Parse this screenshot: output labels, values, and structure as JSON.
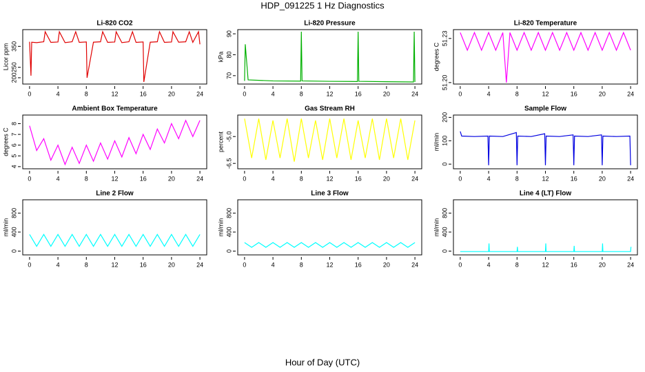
{
  "title": "HDP_091225  1 Hz Diagnostics",
  "xlabel": "Hour of Day (UTC)",
  "chart_data": [
    {
      "type": "line",
      "title": "Li-820 CO2",
      "ylabel": "Licor ppm",
      "color": "#e00000",
      "xlim": [
        -0.96,
        24.96
      ],
      "xticks": [
        0,
        4,
        8,
        12,
        16,
        20,
        24
      ],
      "ylim": [
        170,
        430
      ],
      "yticks": [
        200,
        250,
        350
      ],
      "x": [
        0,
        0.2,
        0.3,
        1,
        2,
        2.2,
        3,
        4,
        4.2,
        5,
        6,
        6.5,
        7,
        8,
        8.1,
        9,
        10,
        10.3,
        11,
        12,
        12.2,
        13,
        14,
        14.5,
        15,
        16,
        16.1,
        17,
        18,
        18.3,
        19,
        20,
        20.2,
        21,
        22,
        22.5,
        23,
        23.8,
        24
      ],
      "values": [
        372,
        210,
        370,
        368,
        372,
        420,
        369,
        371,
        420,
        368,
        372,
        420,
        369,
        371,
        200,
        370,
        372,
        420,
        369,
        371,
        420,
        368,
        372,
        420,
        369,
        371,
        180,
        370,
        372,
        420,
        369,
        371,
        420,
        370,
        372,
        420,
        369,
        420,
        360
      ]
    },
    {
      "type": "line",
      "title": "Li-820 Pressure",
      "ylabel": "kPa",
      "color": "#00b000",
      "xlim": [
        -0.96,
        24.96
      ],
      "xticks": [
        0,
        4,
        8,
        12,
        16,
        20,
        24
      ],
      "ylim": [
        66,
        92
      ],
      "yticks": [
        70,
        80,
        90
      ],
      "x": [
        0,
        0.1,
        0.5,
        4,
        7.9,
        8,
        8.1,
        12,
        15.9,
        16,
        16.1,
        20,
        23.8,
        23.9,
        24
      ],
      "values": [
        67.5,
        85,
        68,
        67.5,
        67.4,
        91,
        67.5,
        67.3,
        67.2,
        91,
        67.3,
        67.1,
        67,
        91,
        67
      ]
    },
    {
      "type": "line",
      "title": "Li-820 Temperature",
      "ylabel": "degrees C",
      "color": "#ff00ff",
      "xlim": [
        -0.96,
        24.96
      ],
      "xticks": [
        0,
        4,
        8,
        12,
        16,
        20,
        24
      ],
      "ylim": [
        51.199,
        51.236
      ],
      "yticks": [
        {
          "value": 51.2,
          "label": "51.20"
        },
        51.23
      ],
      "x": [
        0,
        1,
        2,
        3,
        4,
        5,
        6,
        6.5,
        7,
        8,
        9,
        10,
        11,
        12,
        13,
        14,
        15,
        16,
        17,
        18,
        19,
        20,
        21,
        22,
        23,
        24
      ],
      "values": [
        51.234,
        51.222,
        51.234,
        51.222,
        51.234,
        51.222,
        51.234,
        51.2,
        51.234,
        51.222,
        51.234,
        51.222,
        51.234,
        51.222,
        51.234,
        51.222,
        51.234,
        51.222,
        51.234,
        51.222,
        51.234,
        51.222,
        51.234,
        51.222,
        51.234,
        51.222
      ]
    },
    {
      "type": "line",
      "title": "Ambient Box Temperature",
      "ylabel": "degrees C",
      "color": "#ff00ff",
      "xlim": [
        -0.96,
        24.96
      ],
      "xticks": [
        0,
        4,
        8,
        12,
        16,
        20,
        24
      ],
      "ylim": [
        3.8,
        8.8
      ],
      "yticks": [
        4,
        5,
        6,
        7,
        8
      ],
      "x": [
        0,
        1,
        2,
        3,
        4,
        5,
        6,
        7,
        8,
        9,
        10,
        11,
        12,
        13,
        14,
        15,
        16,
        17,
        18,
        19,
        20,
        21,
        22,
        23,
        24
      ],
      "values": [
        7.8,
        5.5,
        6.6,
        4.6,
        6.0,
        4.2,
        5.8,
        4.3,
        6.0,
        4.5,
        6.2,
        4.7,
        6.4,
        4.9,
        6.7,
        5.2,
        7.0,
        5.6,
        7.5,
        6.2,
        8.0,
        6.6,
        8.3,
        6.8,
        8.3
      ]
    },
    {
      "type": "line",
      "title": "Gas Stream RH",
      "ylabel": "percent",
      "color": "#ffff00",
      "xlim": [
        -0.96,
        24.96
      ],
      "xticks": [
        0,
        4,
        8,
        12,
        16,
        20,
        24
      ],
      "ylim": [
        -6.8,
        -3.8
      ],
      "yticks": [
        -6.5,
        {
          "value": -5,
          "label": "-5.0"
        }
      ],
      "x": [
        0,
        1,
        2,
        3,
        4,
        5,
        6,
        7,
        8,
        9,
        10,
        11,
        12,
        13,
        14,
        15,
        16,
        17,
        18,
        19,
        20,
        21,
        22,
        23,
        24
      ],
      "values": [
        -4.0,
        -6.2,
        -4.0,
        -6.3,
        -4.1,
        -6.2,
        -4.0,
        -6.4,
        -4.0,
        -6.2,
        -4.1,
        -6.3,
        -4.0,
        -6.2,
        -4.0,
        -6.3,
        -4.1,
        -6.2,
        -4.0,
        -6.3,
        -4.0,
        -6.2,
        -4.0,
        -6.3,
        -4.1
      ]
    },
    {
      "type": "line",
      "title": "Sample Flow",
      "ylabel": "ml/min",
      "color": "#0000e0",
      "xlim": [
        -0.96,
        24.96
      ],
      "xticks": [
        0,
        4,
        8,
        12,
        16,
        20,
        24
      ],
      "ylim": [
        -20,
        210
      ],
      "yticks": [
        0,
        100,
        200
      ],
      "x": [
        0,
        0.2,
        2,
        3.9,
        4,
        4.1,
        6,
        7.9,
        8,
        8.1,
        10,
        11.9,
        12,
        12.1,
        14,
        15.9,
        16,
        16.1,
        18,
        19.9,
        20,
        20.1,
        22,
        23.9,
        24
      ],
      "values": [
        140,
        120,
        118,
        120,
        -5,
        120,
        118,
        135,
        -5,
        120,
        118,
        130,
        -5,
        120,
        118,
        125,
        -5,
        120,
        118,
        125,
        -5,
        120,
        118,
        120,
        -5
      ]
    },
    {
      "type": "line",
      "title": "Line 2 Flow",
      "ylabel": "ml/min",
      "color": "#00ffff",
      "xlim": [
        -0.96,
        24.96
      ],
      "xticks": [
        0,
        4,
        8,
        12,
        16,
        20,
        24
      ],
      "ylim": [
        -80,
        1080
      ],
      "yticks": [
        0,
        400,
        800
      ],
      "x": [
        0,
        1,
        2,
        3,
        4,
        5,
        6,
        7,
        8,
        9,
        10,
        11,
        12,
        13,
        14,
        15,
        16,
        17,
        18,
        19,
        20,
        21,
        22,
        23,
        24
      ],
      "values": [
        350,
        100,
        350,
        100,
        350,
        100,
        350,
        100,
        350,
        100,
        350,
        100,
        350,
        100,
        350,
        100,
        350,
        100,
        350,
        100,
        350,
        100,
        350,
        100,
        350
      ]
    },
    {
      "type": "line",
      "title": "Line 3 Flow",
      "ylabel": "ml/min",
      "color": "#00ffff",
      "xlim": [
        -0.96,
        24.96
      ],
      "xticks": [
        0,
        4,
        8,
        12,
        16,
        20,
        24
      ],
      "ylim": [
        -80,
        1080
      ],
      "yticks": [
        0,
        400,
        800
      ],
      "x": [
        0,
        1,
        2,
        3,
        4,
        5,
        6,
        7,
        8,
        9,
        10,
        11,
        12,
        13,
        14,
        15,
        16,
        17,
        18,
        19,
        20,
        21,
        22,
        23,
        24
      ],
      "values": [
        180,
        80,
        180,
        80,
        180,
        80,
        180,
        80,
        180,
        80,
        180,
        80,
        180,
        80,
        180,
        80,
        180,
        80,
        180,
        80,
        180,
        80,
        180,
        80,
        180
      ]
    },
    {
      "type": "line",
      "title": "Line 4 (LT) Flow",
      "ylabel": "ml/min",
      "color": "#00ffff",
      "xlim": [
        -0.96,
        24.96
      ],
      "xticks": [
        0,
        4,
        8,
        12,
        16,
        20,
        24
      ],
      "ylim": [
        -80,
        1080
      ],
      "yticks": [
        0,
        400,
        800
      ],
      "x": [
        0,
        4,
        4.05,
        4.1,
        8,
        8.05,
        8.1,
        12,
        12.05,
        12.1,
        16,
        16.05,
        16.1,
        20,
        20.05,
        20.1,
        24,
        24.05
      ],
      "values": [
        -10,
        -10,
        160,
        -10,
        -10,
        90,
        -10,
        -10,
        160,
        -10,
        -10,
        110,
        -10,
        -10,
        160,
        -10,
        -10,
        90
      ]
    }
  ]
}
